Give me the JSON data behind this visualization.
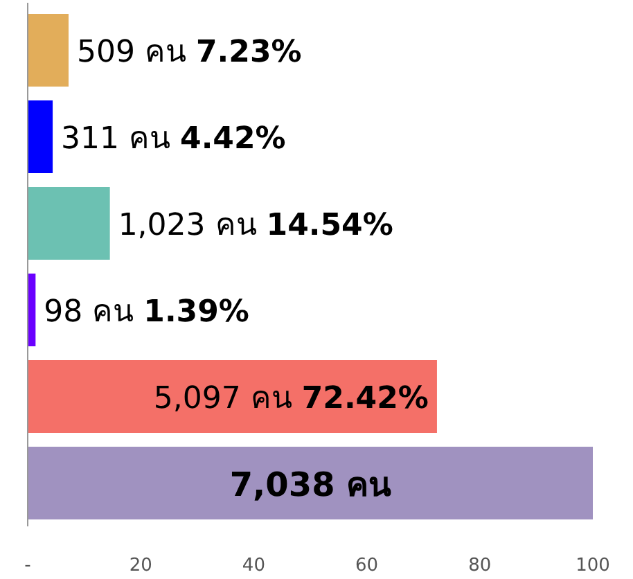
{
  "chart_data": {
    "type": "bar",
    "orientation": "horizontal",
    "categories": [
      null,
      null,
      null,
      null,
      null,
      null
    ],
    "values": [
      7.23,
      4.42,
      14.54,
      1.39,
      72.42,
      100
    ],
    "colors": [
      "#e2ad5a",
      "#0000ff",
      "#6cc1b2",
      "#6a00ff",
      "#f47068",
      "#a092c0"
    ],
    "value_labels": [
      "509 คน **7.23%**",
      "311 คน **4.42%**",
      "1,023 คน **14.54%**",
      "98 คน **1.39%**",
      "5,097 คน **72.42%**",
      null
    ],
    "annotations": [
      "**7,038 คน**"
    ],
    "xlim": [
      0,
      100
    ],
    "xticks": [
      {
        "value": 0,
        "label": "-"
      },
      20,
      40,
      60,
      80,
      100
    ],
    "grid": false
  }
}
